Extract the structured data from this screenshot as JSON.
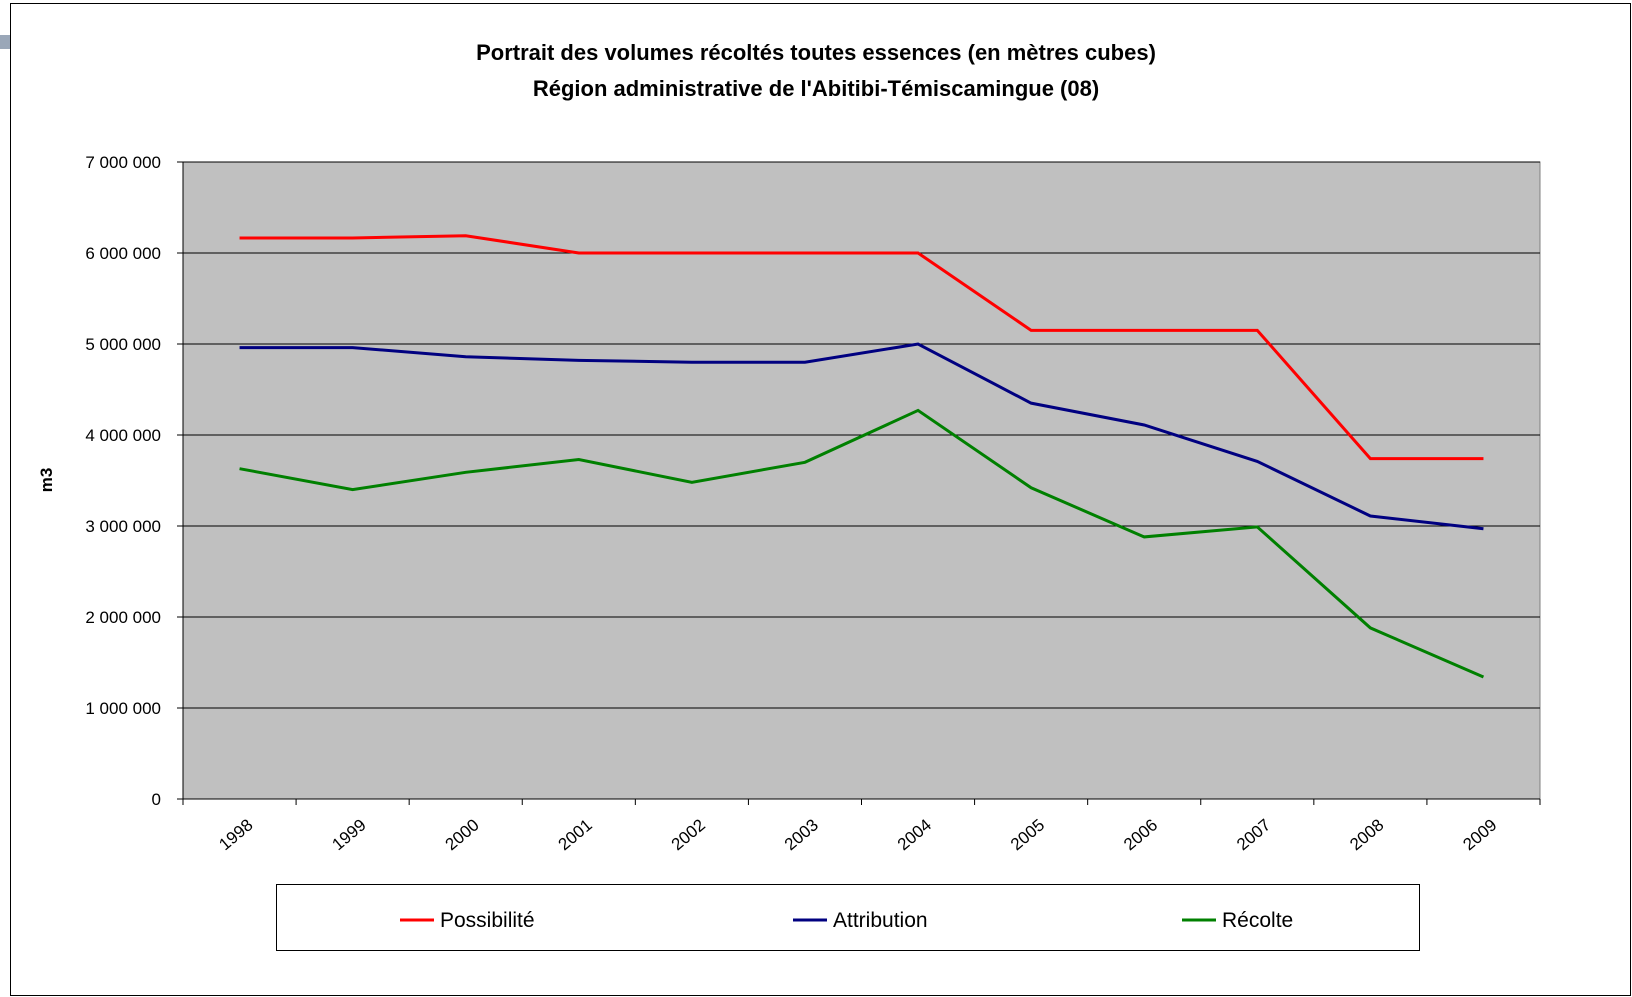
{
  "chart_data": {
    "type": "line",
    "title": "Portrait des volumes récoltés toutes essences (en mètres cubes)",
    "subtitle": "Région administrative de l'Abitibi-Témiscamingue (08)",
    "y_label": "m3",
    "categories": [
      "1998",
      "1999",
      "2000",
      "2001",
      "2002",
      "2003",
      "2004",
      "2005",
      "2006",
      "2007",
      "2008",
      "2009"
    ],
    "series": [
      {
        "name": "Possibilité",
        "color": "#ff0000",
        "values": [
          6165000,
          6165000,
          6190000,
          6000000,
          6000000,
          6000000,
          6000000,
          5150000,
          5150000,
          5150000,
          3740000,
          3740000
        ]
      },
      {
        "name": "Attribution",
        "color": "#000080",
        "values": [
          4960000,
          4960000,
          4860000,
          4820000,
          4800000,
          4800000,
          5000000,
          4350000,
          4110000,
          3710000,
          3110000,
          2970000
        ]
      },
      {
        "name": "Récolte",
        "color": "#008000",
        "values": [
          3630000,
          3400000,
          3590000,
          3730000,
          3480000,
          3700000,
          4270000,
          3420000,
          2880000,
          2990000,
          1880000,
          1340000
        ]
      }
    ],
    "ylim": [
      0,
      7000000
    ],
    "yticks": [
      0,
      {
        "value": 1000000,
        "label": "1 000 000"
      },
      {
        "value": 2000000,
        "label": "2 000 000"
      },
      {
        "value": 3000000,
        "label": "3 000 000"
      },
      {
        "value": 4000000,
        "label": "4 000 000"
      },
      {
        "value": 5000000,
        "label": "5 000 000"
      },
      {
        "value": 6000000,
        "label": "6 000 000"
      },
      {
        "value": 7000000,
        "label": "7 000 000"
      }
    ],
    "grid": true,
    "plot_background": "#c0c0c0",
    "legend": "bottom"
  }
}
